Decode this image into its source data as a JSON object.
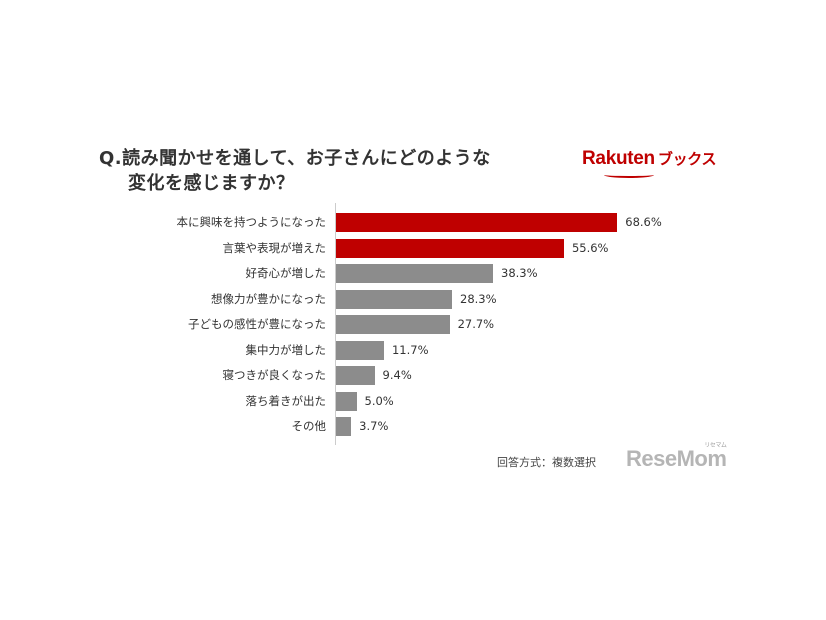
{
  "chart_data": {
    "type": "bar",
    "orientation": "horizontal",
    "title": "Q.読み聞かせを通して、お子さんにどのような変化を感じますか？",
    "title_lines": [
      "Q.読み聞かせを通して、お子さんにどのような",
      "変化を感じますか？"
    ],
    "categories": [
      "本に興味を持つようになった",
      "言葉や表現が増えた",
      "好奇心が増した",
      "想像力が豊かになった",
      "子どもの感性が豊になった",
      "集中力が増した",
      "寝つきが良くなった",
      "落ち着きが出た",
      "その他"
    ],
    "values": [
      68.6,
      55.6,
      38.3,
      28.3,
      27.7,
      11.7,
      9.4,
      5.0,
      3.7
    ],
    "value_labels": [
      "68.6%",
      "55.6%",
      "38.3%",
      "28.3%",
      "27.7%",
      "11.7%",
      "9.4%",
      "5.0%",
      "3.7%"
    ],
    "highlight_colors": [
      "#bf0000",
      "#bf0000",
      "#8c8c8c",
      "#8c8c8c",
      "#8c8c8c",
      "#8c8c8c",
      "#8c8c8c",
      "#8c8c8c",
      "#8c8c8c"
    ],
    "xlabel": "",
    "ylabel": "",
    "unit": "%",
    "grid": false,
    "legend": null,
    "annotation": "回答方式：複数選択"
  },
  "brand": {
    "logo_text": "Rakuten",
    "logo_sub": "ブックス",
    "color": "#bf0000"
  },
  "watermark": {
    "text": "ReseMom",
    "ruby": "リセマム"
  }
}
